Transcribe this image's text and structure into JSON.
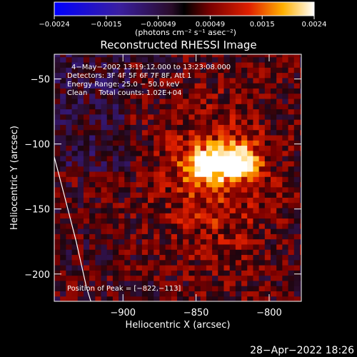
{
  "chart_data": {
    "type": "heatmap",
    "title": "Reconstructed RHESSI Image",
    "xlabel": "Heliocentric X (arcsec)",
    "ylabel": "Heliocentric Y (arcsec)",
    "xlim": [
      -947,
      -778
    ],
    "ylim": [
      -221,
      -31
    ],
    "x_ticks": [
      {
        "value": -900,
        "label": "−900"
      },
      {
        "value": -850,
        "label": "−850"
      },
      {
        "value": -800,
        "label": "−800"
      }
    ],
    "y_ticks": [
      {
        "value": -50,
        "label": "−50"
      },
      {
        "value": -100,
        "label": "−100"
      },
      {
        "value": -150,
        "label": "−150"
      },
      {
        "value": -200,
        "label": "−200"
      }
    ],
    "colorbar": {
      "range": [
        -0.0024,
        0.0024
      ],
      "tick_labels": [
        "−0.0024",
        "−0.0015",
        "−0.00049",
        "0.00049",
        "0.0015",
        "0.0024"
      ],
      "unit_label": "(photons cm⁻² s⁻¹ asec⁻²)"
    },
    "annotations": [
      "4−May−2002 13:19:12.000 to 13:23:08.000",
      "Detectors: 3F 4F 5F 6F 7F 8F, Att 1",
      "Energy Range: 25.0 − 50.0 keV",
      "Clean     Total counts: 1.02E+04"
    ],
    "peak_label": "Position of Peak = [−822,−113]",
    "sources": [
      {
        "x": -844,
        "y": -116,
        "peak": 0.0021
      },
      {
        "x": -822,
        "y": -113,
        "peak": 0.0024
      }
    ],
    "limb": [
      [
        -947,
        -110
      ],
      [
        -940,
        -140
      ],
      [
        -932,
        -175
      ],
      [
        -925,
        -210
      ],
      [
        -922,
        -221
      ]
    ]
  },
  "footer": {
    "timestamp": "28−Apr−2022 18:26"
  }
}
